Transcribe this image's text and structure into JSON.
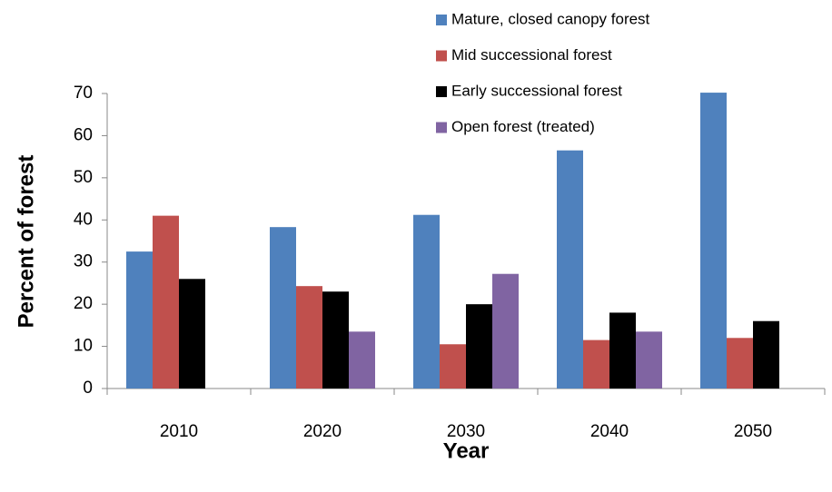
{
  "chart_data": {
    "type": "bar",
    "x_label": "Year",
    "y_label": "Percent of forest",
    "categories": [
      "2010",
      "2020",
      "2030",
      "2040",
      "2050"
    ],
    "series": [
      {
        "name": "Mature, closed canopy forest",
        "color": "#4f81bd",
        "values": [
          32.5,
          38.3,
          41.2,
          56.5,
          70.2
        ]
      },
      {
        "name": "Mid successional forest",
        "color": "#c0504d",
        "values": [
          41,
          24.3,
          10.5,
          11.5,
          12
        ]
      },
      {
        "name": "Early successional forest",
        "color": "#000000",
        "values": [
          26,
          23,
          20,
          18,
          16
        ]
      },
      {
        "name": "Open forest (treated)",
        "color": "#8064a2",
        "values": [
          null,
          13.5,
          27.2,
          13.5,
          null
        ]
      }
    ],
    "ylim": [
      0,
      70
    ],
    "yticks": [
      0,
      10,
      20,
      30,
      40,
      50,
      60,
      70
    ],
    "grid": false,
    "legend": "top-right"
  }
}
